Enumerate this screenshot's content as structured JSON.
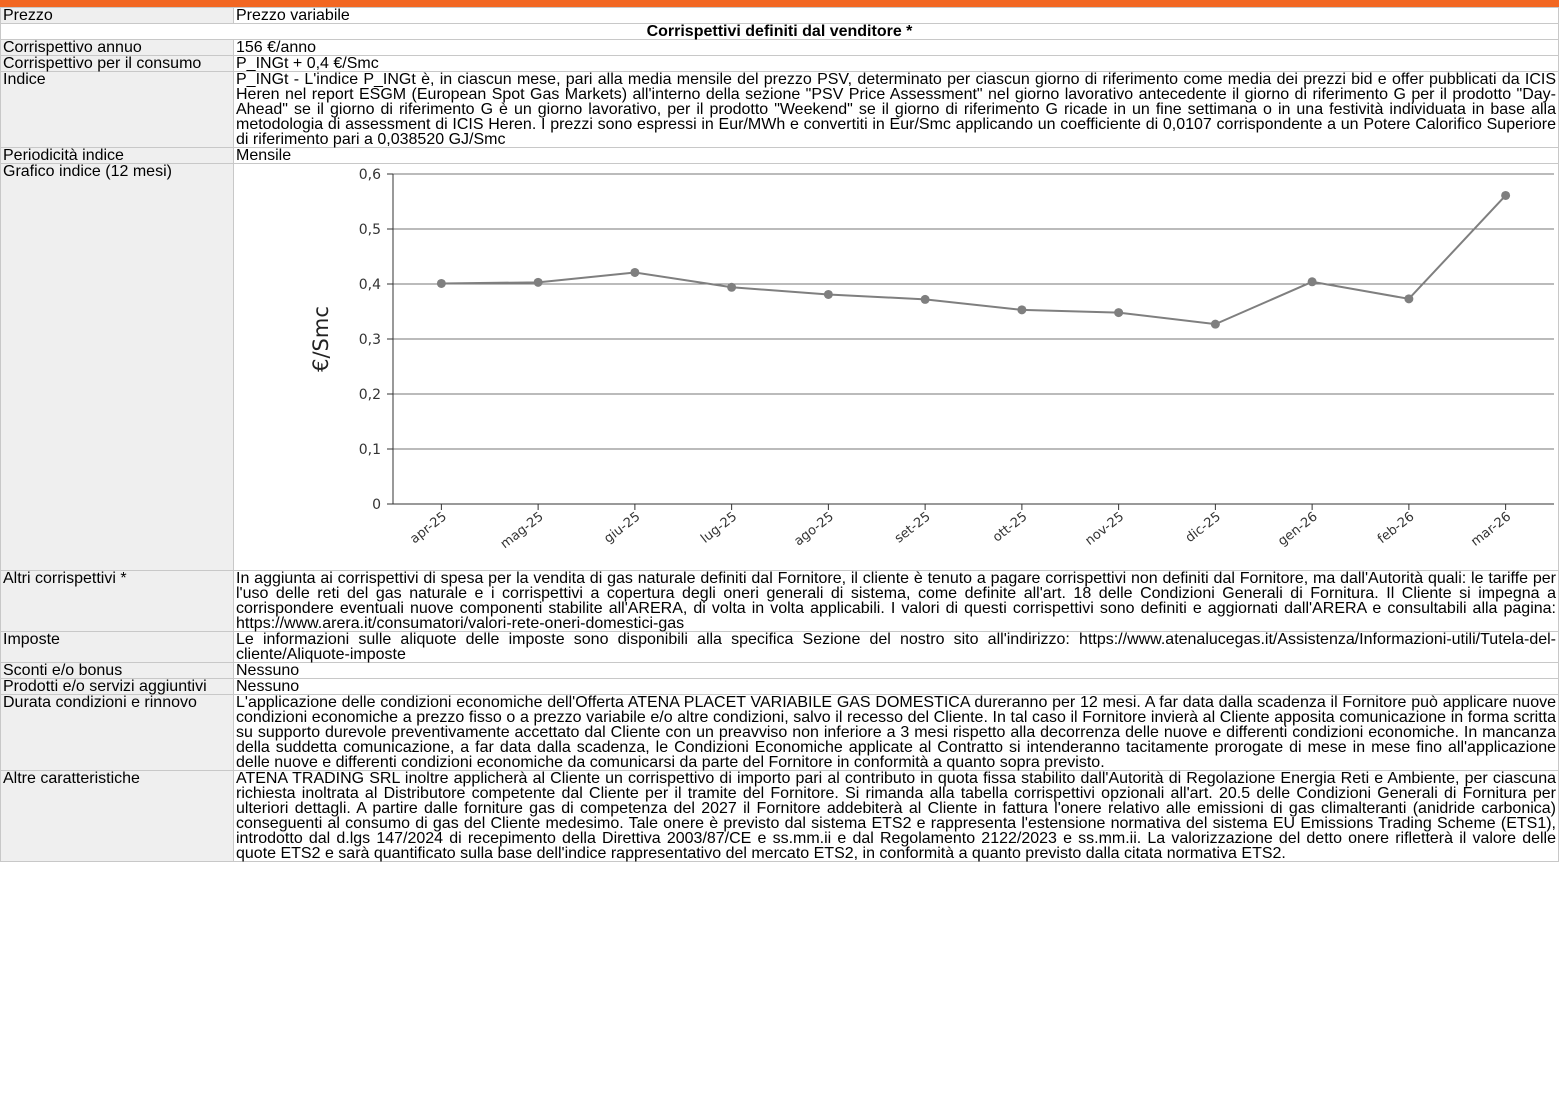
{
  "rows": {
    "prezzo": {
      "label": "Prezzo",
      "value": "Prezzo variabile"
    },
    "section_title": "Corrispettivi definiti dal venditore *",
    "annuo": {
      "label": "Corrispettivo annuo",
      "value": "156 €/anno"
    },
    "consumo": {
      "label": "Corrispettivo per il consumo",
      "value": "P_INGt + 0,4 €/Smc"
    },
    "indice": {
      "label": "Indice",
      "value": "P_INGt - L'indice P_INGt è, in ciascun mese, pari alla media mensile del prezzo PSV, determinato per ciascun giorno di riferimento come media dei prezzi bid e offer pubblicati da ICIS Heren nel report ESGM (European Spot Gas Markets) all'interno della sezione \"PSV Price Assessment\" nel giorno lavorativo antecedente il giorno di riferimento G per il prodotto \"Day-Ahead\" se il giorno di riferimento G è un giorno lavorativo, per il prodotto \"Weekend\" se il giorno di riferimento G ricade in un fine settimana o in una festività individuata in base alla metodologia di assessment di ICIS Heren. I prezzi sono espressi in Eur/MWh e convertiti in Eur/Smc applicando un coefficiente di 0,0107 corrispondente a un Potere Calorifico Superiore di riferimento pari a 0,038520 GJ/Smc"
    },
    "periodicita": {
      "label": "Periodicità indice",
      "value": "Mensile"
    },
    "grafico": {
      "label": "Grafico indice (12 mesi)"
    },
    "altri": {
      "label": "Altri corrispettivi *",
      "value": "In aggiunta ai corrispettivi di spesa per la vendita di gas naturale definiti dal Fornitore, il cliente è tenuto a pagare corrispettivi non definiti dal Fornitore, ma dall'Autorità quali: le tariffe per l'uso delle reti del gas naturale e i corrispettivi a copertura degli oneri generali di sistema, come definite all'art. 18 delle Condizioni Generali di Fornitura. Il Cliente si impegna a corrispondere eventuali nuove componenti stabilite all'ARERA, di volta in volta applicabili. I valori di questi corrispettivi sono definiti e aggiornati dall'ARERA e consultabili alla pagina: https://www.arera.it/consumatori/valori-rete-oneri-domestici-gas"
    },
    "imposte": {
      "label": "Imposte",
      "value": "Le informazioni sulle aliquote delle imposte sono disponibili alla specifica Sezione del nostro sito all'indirizzo: https://www.atenalucegas.it/Assistenza/Informazioni-utili/Tutela-del-cliente/Aliquote-imposte"
    },
    "sconti": {
      "label": "Sconti e/o bonus",
      "value": "Nessuno"
    },
    "prodotti": {
      "label": "Prodotti e/o servizi aggiuntivi",
      "value": "Nessuno"
    },
    "durata": {
      "label": "Durata condizioni e rinnovo",
      "value": "L'applicazione delle condizioni economiche dell'Offerta ATENA PLACET VARIABILE GAS DOMESTICA dureranno per 12 mesi. A far data dalla scadenza il Fornitore può applicare nuove condizioni economiche a prezzo fisso o a prezzo variabile e/o altre condizioni, salvo il recesso del Cliente. In tal caso il Fornitore invierà al Cliente apposita comunicazione in forma scritta su supporto durevole preventivamente accettato dal Cliente con un preavviso non inferiore a 3 mesi rispetto alla decorrenza delle nuove e differenti condizioni economiche. In mancanza della suddetta comunicazione, a far data dalla scadenza, le Condizioni Economiche applicate al Contratto si intenderanno tacitamente prorogate di mese in mese fino all'applicazione delle nuove e differenti condizioni economiche da comunicarsi da parte del Fornitore in conformità a quanto sopra previsto."
    },
    "altre": {
      "label": "Altre caratteristiche",
      "value": "ATENA TRADING SRL inoltre applicherà al Cliente un corrispettivo di importo pari al contributo in quota fissa stabilito dall'Autorità di Regolazione Energia Reti e Ambiente, per ciascuna richiesta inoltrata al Distributore competente dal Cliente per il tramite del Fornitore. Si rimanda alla tabella corrispettivi opzionali all'art. 20.5 delle Condizioni Generali di Fornitura per ulteriori dettagli. A partire dalle forniture gas di competenza del 2027 il Fornitore addebiterà al Cliente in fattura l'onere relativo alle emissioni di gas climalteranti (anidride carbonica) conseguenti al consumo di gas del Cliente medesimo. Tale onere è previsto dal sistema ETS2 e rappresenta l'estensione normativa del sistema EU Emissions Trading Scheme (ETS1), introdotto dal d.lgs 147/2024 di recepimento della Direttiva 2003/87/CE e ss.mm.ii e dal Regolamento 2122/2023 e ss.mm.ii. La valorizzazione del detto onere rifletterà il valore delle quote ETS2 e sarà quantificato sulla base dell'indice rappresentativo del mercato ETS2, in conformità a quanto previsto dalla citata normativa ETS2."
    }
  },
  "colors": {
    "accent": "#f26722",
    "label_bg": "#efefef",
    "line": "#7f7f7f"
  },
  "chart_data": {
    "type": "line",
    "title": "",
    "xlabel": "",
    "ylabel": "€/Smc",
    "categories": [
      "apr-25",
      "mag-25",
      "giu-25",
      "lug-25",
      "ago-25",
      "set-25",
      "ott-25",
      "nov-25",
      "dic-25",
      "gen-26",
      "feb-26",
      "mar-26"
    ],
    "values": [
      0.401,
      0.403,
      0.421,
      0.394,
      0.381,
      0.372,
      0.353,
      0.348,
      0.327,
      0.404,
      0.373,
      0.561
    ],
    "ylim": [
      0,
      0.6
    ],
    "yticks": [
      "0",
      "0,1",
      "0,2",
      "0,3",
      "0,4",
      "0,5",
      "0,6"
    ],
    "grid": true,
    "legend": "none"
  }
}
